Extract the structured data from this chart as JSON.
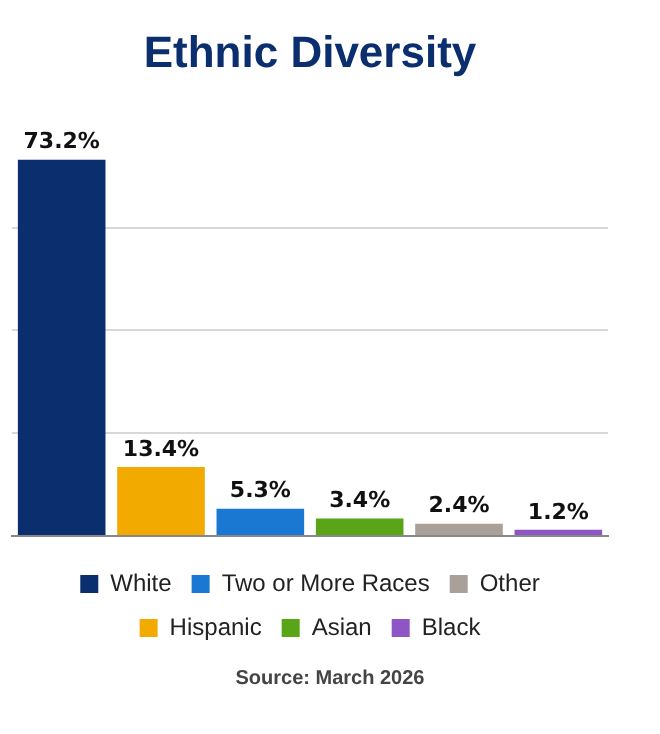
{
  "chart_data": {
    "type": "bar",
    "title": "Ethnic Diversity",
    "categories": [
      null,
      null,
      null,
      null,
      null,
      null
    ],
    "series": [
      {
        "name": "White",
        "color": "#0b2f6e",
        "values": [
          73.2,
          null,
          null,
          null,
          null,
          null
        ],
        "value_labels": [
          "73.2%",
          null,
          null,
          null,
          null,
          null
        ]
      },
      {
        "name": "Hispanic",
        "color": "#f2a900",
        "values": [
          null,
          13.4,
          null,
          null,
          null,
          null
        ],
        "value_labels": [
          null,
          "13.4%",
          null,
          null,
          null,
          null
        ]
      },
      {
        "name": "Two or More Races",
        "color": "#1a78d2",
        "values": [
          null,
          null,
          5.3,
          null,
          null,
          null
        ],
        "value_labels": [
          null,
          null,
          "5.3%",
          null,
          null,
          null
        ]
      },
      {
        "name": "Asian",
        "color": "#5aa418",
        "values": [
          null,
          null,
          null,
          3.4,
          null,
          null
        ],
        "value_labels": [
          null,
          null,
          null,
          "3.4%",
          null,
          null
        ]
      },
      {
        "name": "Other",
        "color": "#a8a099",
        "values": [
          null,
          null,
          null,
          null,
          2.4,
          null
        ],
        "value_labels": [
          null,
          null,
          null,
          null,
          "2.4%",
          null
        ]
      },
      {
        "name": "Black",
        "color": "#8d55c6",
        "values": [
          null,
          null,
          null,
          null,
          null,
          1.2
        ],
        "value_labels": [
          null,
          null,
          null,
          null,
          null,
          "1.2%"
        ]
      }
    ],
    "yticks": [
      {
        "value": 0,
        "label": null
      },
      {
        "value": 20,
        "label": null
      },
      {
        "value": 40,
        "label": null
      },
      {
        "value": 60,
        "label": null
      }
    ],
    "stacked": true,
    "grid": "y",
    "tick_labels": false,
    "legend": "bottom",
    "annotations": [
      "Source: March 2026"
    ]
  }
}
